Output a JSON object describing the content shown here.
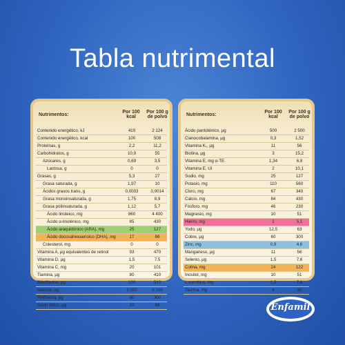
{
  "title": "Tabla nutrimental",
  "logo_text": "Enfamil",
  "colors": {
    "background": "#2f64bf",
    "panel": "#f7ecd0",
    "panel_border": "#e6c98a",
    "highlight_green": "#9fcf72",
    "highlight_orange": "#f3b357",
    "highlight_pink": "#f26f9b",
    "highlight_blue": "#8cc1e2"
  },
  "left_table": {
    "headers": [
      "Nutrimentos:",
      "Por 100 kcal",
      "Por 100 g de polvo"
    ],
    "rows": [
      {
        "name": "Contenido energético, kJ",
        "v1": "419",
        "v2": "2 124",
        "indent": 0,
        "hl": ""
      },
      {
        "name": "Contenido energético, kcal",
        "v1": "100",
        "v2": "508",
        "indent": 0,
        "hl": ""
      },
      {
        "name": "Proteínas, g",
        "v1": "2,2",
        "v2": "11,2",
        "indent": 0,
        "hl": ""
      },
      {
        "name": "Carbohidratos, g",
        "v1": "10,9",
        "v2": "55",
        "indent": 0,
        "hl": ""
      },
      {
        "name": "Azúcares, g",
        "v1": "0,69",
        "v2": "3,5",
        "indent": 1,
        "hl": ""
      },
      {
        "name": "Lactosa, g",
        "v1": "0",
        "v2": "0",
        "indent": 2,
        "hl": ""
      },
      {
        "name": "Grasas, g",
        "v1": "5,3",
        "v2": "27",
        "indent": 0,
        "hl": ""
      },
      {
        "name": "Grasa saturada, g",
        "v1": "1,97",
        "v2": "10",
        "indent": 1,
        "hl": ""
      },
      {
        "name": "Ácidos grasos trans, g",
        "v1": "0,0003",
        "v2": "0,0014",
        "indent": 1,
        "hl": ""
      },
      {
        "name": "Grasa monoinsaturada, g",
        "v1": "1,75",
        "v2": "8,9",
        "indent": 1,
        "hl": ""
      },
      {
        "name": "Grasa poliinsaturada, g",
        "v1": "1,12",
        "v2": "5,7",
        "indent": 1,
        "hl": ""
      },
      {
        "name": "Ácido linoleico, mg",
        "v1": "860",
        "v2": "4 400",
        "indent": 2,
        "hl": ""
      },
      {
        "name": "Ácido α-linolénico, mg",
        "v1": "85",
        "v2": "430",
        "indent": 2,
        "hl": ""
      },
      {
        "name": "Ácido araquidónico (ARA), mg",
        "v1": "25",
        "v2": "127",
        "indent": 2,
        "hl": "green"
      },
      {
        "name": "Ácido docosahexaenoico (DHA), mg",
        "v1": "17",
        "v2": "86",
        "indent": 2,
        "hl": "orange"
      },
      {
        "name": "Colesterol, mg",
        "v1": "0",
        "v2": "0",
        "indent": 1,
        "hl": ""
      },
      {
        "name": "Vitamina A, μg equivalentes de retinol",
        "v1": "93",
        "v2": "470",
        "indent": 0,
        "hl": ""
      },
      {
        "name": "Vitamina D, μg",
        "v1": "1,5",
        "v2": "7,5",
        "indent": 0,
        "hl": ""
      },
      {
        "name": "Vitamina C, mg",
        "v1": "20",
        "v2": "101",
        "indent": 0,
        "hl": ""
      },
      {
        "name": "Tiamina, μg",
        "v1": "80",
        "v2": "410",
        "indent": 0,
        "hl": ""
      },
      {
        "name": "Riboflavina, μg",
        "v1": "100",
        "v2": "510",
        "indent": 0,
        "hl": ""
      },
      {
        "name": "Niacina, μg",
        "v1": "1 000",
        "v2": "5 100",
        "indent": 0,
        "hl": ""
      },
      {
        "name": "Piridoxina, μg",
        "v1": "60",
        "v2": "300",
        "indent": 0,
        "hl": ""
      },
      {
        "name": "Ácido fólico, μg",
        "v1": "13",
        "v2": "66",
        "indent": 0,
        "hl": ""
      }
    ]
  },
  "right_table": {
    "headers": [
      "Nutrimentos:",
      "Por 100 kcal",
      "Por 100 g de polvo"
    ],
    "rows": [
      {
        "name": "Ácido pantoténico, μg",
        "v1": "500",
        "v2": "2 500",
        "indent": 0,
        "hl": ""
      },
      {
        "name": "Cianocobalamina, μg",
        "v1": "0,3",
        "v2": "1,52",
        "indent": 0,
        "hl": ""
      },
      {
        "name": "Vitamina K₁, μg",
        "v1": "11",
        "v2": "56",
        "indent": 0,
        "hl": ""
      },
      {
        "name": "Biotina, μg",
        "v1": "3",
        "v2": "15,2",
        "indent": 0,
        "hl": ""
      },
      {
        "name": "Vitamina E, mg α-TE",
        "v1": "1,34",
        "v2": "6,8",
        "indent": 0,
        "hl": ""
      },
      {
        "name": "Vitamina E, UI",
        "v1": "2",
        "v2": "10,1",
        "indent": 0,
        "hl": ""
      },
      {
        "name": "Sodio, mg",
        "v1": "25",
        "v2": "127",
        "indent": 0,
        "hl": ""
      },
      {
        "name": "Potasio, mg",
        "v1": "110",
        "v2": "560",
        "indent": 0,
        "hl": ""
      },
      {
        "name": "Cloro, mg",
        "v1": "67",
        "v2": "340",
        "indent": 0,
        "hl": ""
      },
      {
        "name": "Calcio, mg",
        "v1": "84",
        "v2": "430",
        "indent": 0,
        "hl": ""
      },
      {
        "name": "Fósforo, mg",
        "v1": "46",
        "v2": "230",
        "indent": 0,
        "hl": ""
      },
      {
        "name": "Magnesio, mg",
        "v1": "10",
        "v2": "51",
        "indent": 0,
        "hl": ""
      },
      {
        "name": "Hierro, mg",
        "v1": "1",
        "v2": "5,1",
        "indent": 0,
        "hl": "pink"
      },
      {
        "name": "Yodo, μg",
        "v1": "12,5",
        "v2": "63",
        "indent": 0,
        "hl": ""
      },
      {
        "name": "Cobre, μg",
        "v1": "60",
        "v2": "300",
        "indent": 0,
        "hl": ""
      },
      {
        "name": "Zinc, mg",
        "v1": "0,9",
        "v2": "4,6",
        "indent": 0,
        "hl": "blue"
      },
      {
        "name": "Manganeso, μg",
        "v1": "11",
        "v2": "56",
        "indent": 0,
        "hl": ""
      },
      {
        "name": "Selenio, μg",
        "v1": "1,5",
        "v2": "7,6",
        "indent": 0,
        "hl": ""
      },
      {
        "name": "Colina, mg",
        "v1": "24",
        "v2": "122",
        "indent": 0,
        "hl": "orange"
      },
      {
        "name": "Inositol, mg",
        "v1": "10",
        "v2": "51",
        "indent": 0,
        "hl": ""
      },
      {
        "name": "L-carnitina, mg",
        "v1": "1,5",
        "v2": "7,6",
        "indent": 0,
        "hl": ""
      },
      {
        "name": "Taurina, mg",
        "v1": "6",
        "v2": "30",
        "indent": 0,
        "hl": ""
      }
    ]
  }
}
